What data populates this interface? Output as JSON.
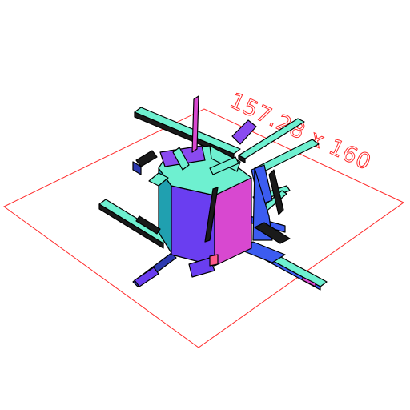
{
  "viewport": {
    "dimension_label": "157.28 x 160"
  },
  "colors": {
    "bed_outline": "#ff2a2a",
    "face_top": "#6ef0d0",
    "face_front": "#6a3ef0",
    "face_side": "#d848d0",
    "face_blue": "#3c5cf0",
    "face_dark": "#2d3ab0",
    "face_pink": "#ff5a8a",
    "edge": "#000000"
  }
}
